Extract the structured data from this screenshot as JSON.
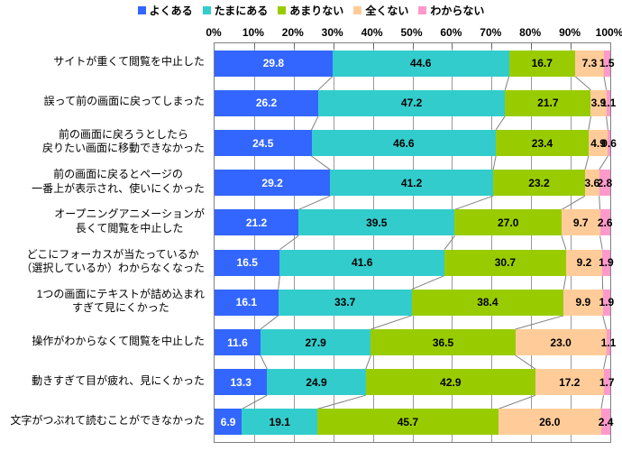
{
  "chart_data": {
    "type": "bar",
    "orientation": "horizontal",
    "stacked": true,
    "title": "",
    "legend_position": "top",
    "grid": true,
    "x_axis": {
      "position": "top",
      "min": 0,
      "max": 100,
      "ticks": [
        "0%",
        "10%",
        "20%",
        "30%",
        "40%",
        "50%",
        "60%",
        "70%",
        "80%",
        "90%",
        "100%"
      ]
    },
    "categories": [
      "サイトが重くて閲覧を中止した",
      "誤って前の画面に戻ってしまった",
      "前の画面に戻ろうとしたら\n戻りたい画面に移動できなかった",
      "前の画面に戻るとページの\n一番上が表示され、使いにくかった",
      "オープニングアニメーションが\n長くて閲覧を中止した",
      "どこにフォーカスが当たっているか\n（選択しているか）わからなくなった",
      "1つの画面にテキストが詰め込まれ\nすぎて見にくかった",
      "操作がわからなくて閲覧を中止した",
      "動きすぎて目が疲れ、見にくかった",
      "文字がつぶれて読むことができなかった"
    ],
    "series": [
      {
        "name": "よくある",
        "color": "#3366FF",
        "label_color": "#FFFFFF",
        "values": [
          29.8,
          26.2,
          24.5,
          29.2,
          21.2,
          16.5,
          16.1,
          11.6,
          13.3,
          6.9
        ]
      },
      {
        "name": "たまにある",
        "color": "#33CCCC",
        "label_color": "#000000",
        "values": [
          44.6,
          47.2,
          46.6,
          41.2,
          39.5,
          41.6,
          33.7,
          27.9,
          24.9,
          19.1
        ]
      },
      {
        "name": "あまりない",
        "color": "#99CC00",
        "label_color": "#000000",
        "values": [
          16.7,
          21.7,
          23.4,
          23.2,
          27.0,
          30.7,
          38.4,
          36.5,
          42.9,
          45.7
        ]
      },
      {
        "name": "全くない",
        "color": "#FFCC99",
        "label_color": "#000000",
        "values": [
          7.3,
          3.9,
          4.9,
          3.6,
          9.7,
          9.2,
          9.9,
          23.0,
          17.2,
          26.0
        ]
      },
      {
        "name": "わからない",
        "color": "#FF99CC",
        "label_color": "#000000",
        "values": [
          1.5,
          1.1,
          0.6,
          2.8,
          2.6,
          1.9,
          1.9,
          1.1,
          1.7,
          2.4
        ]
      }
    ],
    "style": {
      "gridline_color": "#999999",
      "border_color": "#808080",
      "connector_color": "#808080"
    }
  }
}
